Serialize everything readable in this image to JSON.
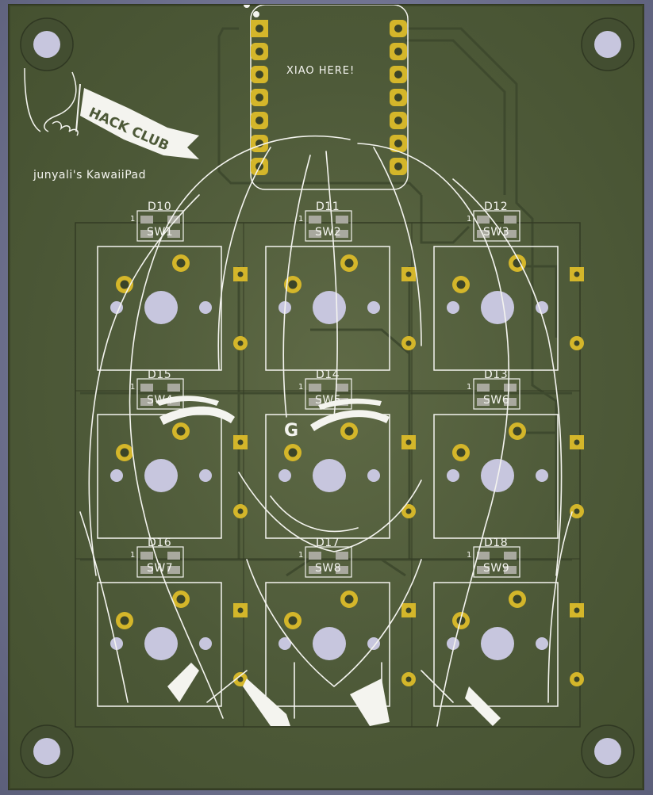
{
  "board": {
    "title_label": "XIAO HERE!",
    "author_label": "junyali's KawaiiPad",
    "brand_text": "HACK CLUB",
    "g_mark": "G",
    "pin1_marker": "1",
    "colors": {
      "substrate": "#4d5938",
      "silkscreen": "#f4f4ef",
      "copper_pad": "#d4b62a",
      "drill": "#c7c6de",
      "trace": "#3f4a30"
    }
  },
  "switches": [
    {
      "label": "SW1"
    },
    {
      "label": "SW2"
    },
    {
      "label": "SW3"
    },
    {
      "label": "SW4"
    },
    {
      "label": "SW5"
    },
    {
      "label": "SW6"
    },
    {
      "label": "SW7"
    },
    {
      "label": "SW8"
    },
    {
      "label": "SW9"
    }
  ],
  "diodes": [
    {
      "label": "D10"
    },
    {
      "label": "D11"
    },
    {
      "label": "D12"
    },
    {
      "label": "D15"
    },
    {
      "label": "D14"
    },
    {
      "label": "D13"
    },
    {
      "label": "D16"
    },
    {
      "label": "D17"
    },
    {
      "label": "D18"
    }
  ],
  "xiao_pads": {
    "left": 7,
    "right": 7
  },
  "mounting_holes": [
    "top-left",
    "top-right",
    "bottom-left",
    "bottom-right"
  ]
}
